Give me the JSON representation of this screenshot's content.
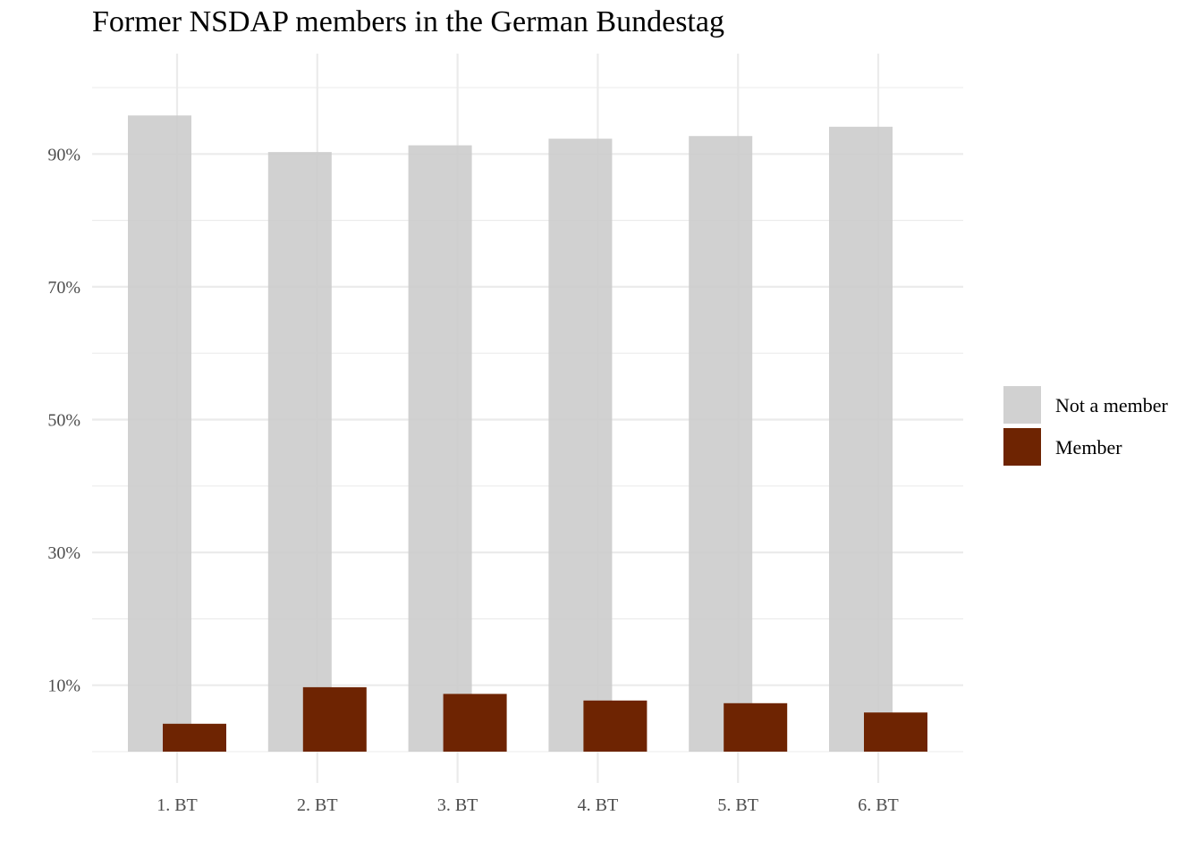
{
  "chart_data": {
    "type": "bar",
    "title": "Former NSDAP members in the German Bundestag",
    "xlabel": "",
    "ylabel": "",
    "categories": [
      "1. BT",
      "2. BT",
      "3. BT",
      "4. BT",
      "5. BT",
      "6. BT"
    ],
    "series": [
      {
        "name": "Not a member",
        "color": "#cccccc",
        "values": [
          95.8,
          90.3,
          91.3,
          92.3,
          92.7,
          94.1
        ]
      },
      {
        "name": "Member",
        "color": "#6e2402",
        "values": [
          4.2,
          9.7,
          8.7,
          7.7,
          7.3,
          5.9
        ]
      }
    ],
    "ylim": [
      0,
      100
    ],
    "yticks": [
      10,
      30,
      50,
      70,
      90
    ],
    "ytick_labels": [
      "10%",
      "30%",
      "50%",
      "70%",
      "90%"
    ],
    "grid": true,
    "legend_position": "right"
  }
}
